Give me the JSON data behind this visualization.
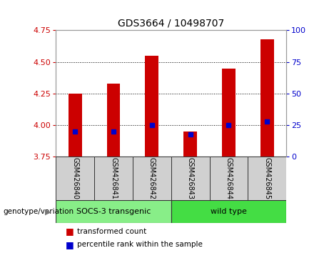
{
  "title": "GDS3664 / 10498707",
  "samples": [
    "GSM426840",
    "GSM426841",
    "GSM426842",
    "GSM426843",
    "GSM426844",
    "GSM426845"
  ],
  "bar_values": [
    4.25,
    4.33,
    4.55,
    3.95,
    4.45,
    4.68
  ],
  "percentile_values": [
    20,
    20,
    25,
    18,
    25,
    28
  ],
  "y_min": 3.75,
  "y_max": 4.75,
  "y_ticks": [
    3.75,
    4.0,
    4.25,
    4.5,
    4.75
  ],
  "y2_ticks": [
    0,
    25,
    50,
    75,
    100
  ],
  "bar_color": "#cc0000",
  "percentile_color": "#0000cc",
  "grid_color": "#000000",
  "bar_width": 0.35,
  "groups": [
    {
      "label": "SOCS-3 transgenic",
      "start": 0,
      "end": 3,
      "color": "#88ee88"
    },
    {
      "label": "wild type",
      "start": 3,
      "end": 6,
      "color": "#44dd44"
    }
  ],
  "group_label": "genotype/variation",
  "legend_items": [
    {
      "label": "transformed count",
      "color": "#cc0000"
    },
    {
      "label": "percentile rank within the sample",
      "color": "#0000cc"
    }
  ],
  "sample_box_color": "#d0d0d0",
  "plot_bg": "#ffffff",
  "title_fontsize": 10,
  "tick_fontsize": 8,
  "label_fontsize": 7,
  "group_fontsize": 8,
  "legend_fontsize": 7.5
}
